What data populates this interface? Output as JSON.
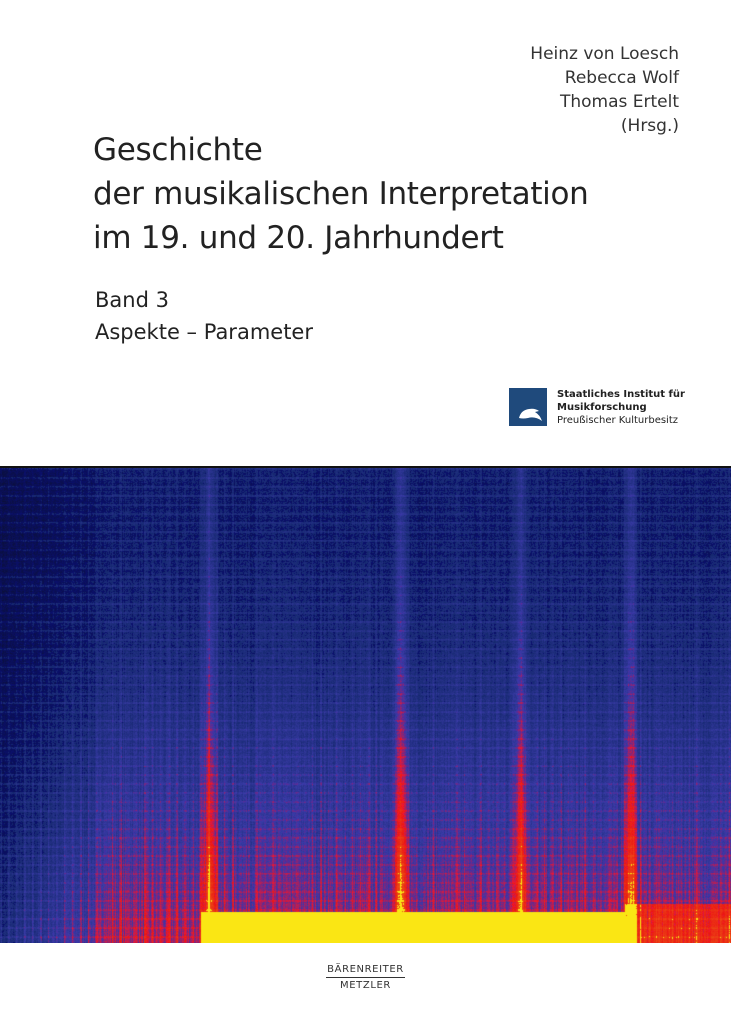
{
  "editors": [
    "Heinz von Loesch",
    "Rebecca Wolf",
    "Thomas Ertelt",
    "(Hrsg.)"
  ],
  "title_lines": [
    "Geschichte",
    "der musikalischen Interpretation",
    "im 19. und 20. Jahrhundert"
  ],
  "volume": "Band 3",
  "subtitle": "Aspekte – Parameter",
  "institute_logo": {
    "line1": "Staatliches Institut für",
    "line2": "Musikforschung",
    "line3": "Preußischer Kulturbesitz",
    "color": "#1f4a7c"
  },
  "publisher": {
    "line1": "BÄRENREITER",
    "line2": "METZLER"
  },
  "cover_image": "spectrogram"
}
